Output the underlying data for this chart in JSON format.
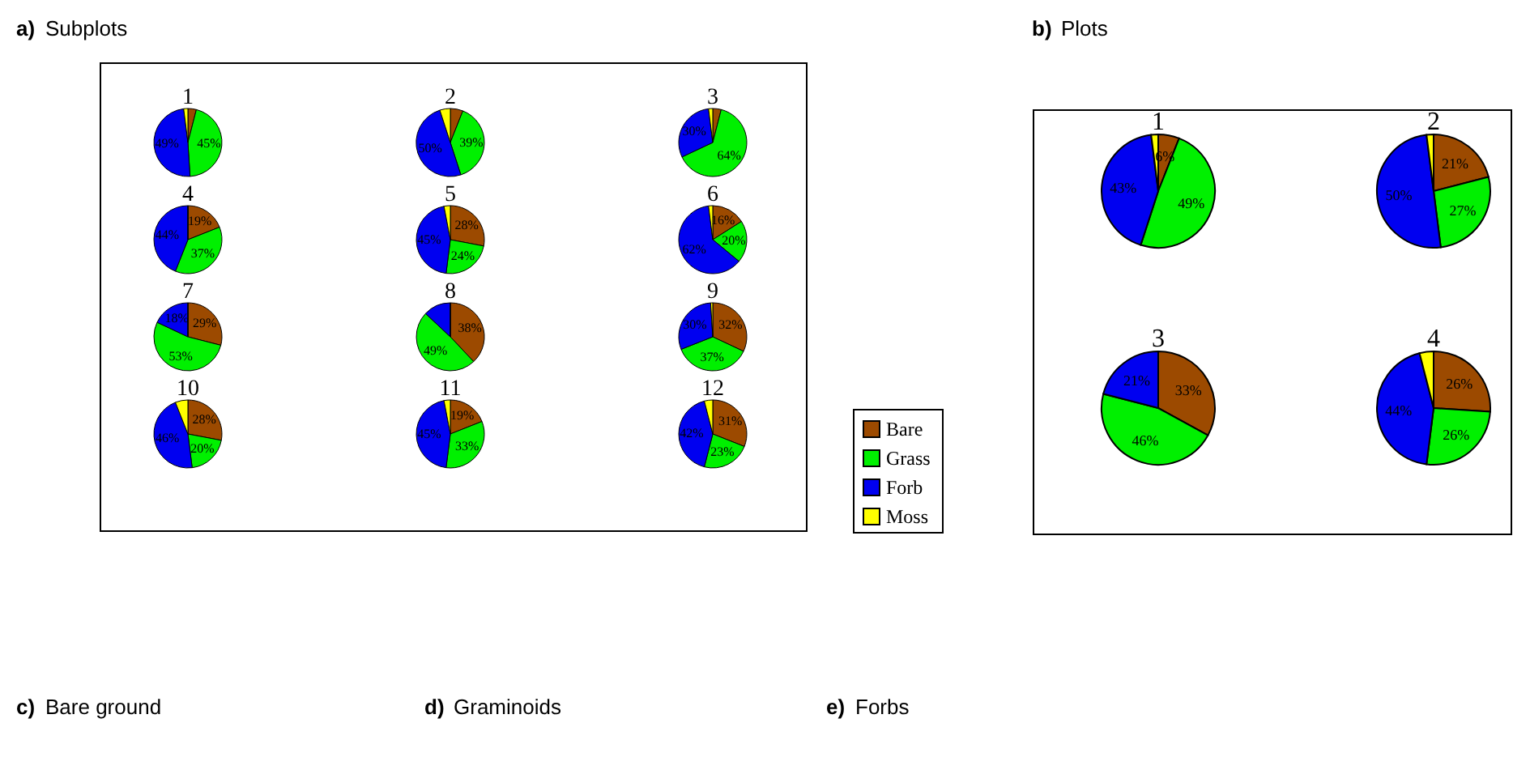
{
  "chart_data": [
    {
      "type": "pie",
      "title": "1",
      "categories": [
        "Bare",
        "Grass",
        "Forb",
        "Moss"
      ],
      "values": [
        4,
        45,
        49,
        2
      ],
      "colors": [
        "#9c4a00",
        "#00f000",
        "#0000f0",
        "#ffff00"
      ],
      "value_labels": [
        null,
        "45%",
        "49%",
        null
      ],
      "legend": "right",
      "annotations": [
        "a) Subplots"
      ]
    },
    {
      "type": "pie",
      "title": "2",
      "categories": [
        null,
        null,
        null,
        null
      ],
      "values": [
        6,
        39,
        50,
        5
      ],
      "colors": [
        "#9c4a00",
        "#00f000",
        "#0000f0",
        "#ffff00"
      ],
      "value_labels": [
        null,
        "39%",
        "50%",
        null
      ]
    },
    {
      "type": "pie",
      "title": "3",
      "categories": [
        null,
        null,
        null,
        null
      ],
      "values": [
        4,
        64,
        30,
        2
      ],
      "colors": [
        "#9c4a00",
        "#00f000",
        "#0000f0",
        "#ffff00"
      ],
      "value_labels": [
        null,
        "64%",
        "30%",
        null
      ]
    },
    {
      "type": "pie",
      "title": "4",
      "categories": [
        null,
        null,
        null,
        null
      ],
      "values": [
        19,
        37,
        44,
        0
      ],
      "colors": [
        "#9c4a00",
        "#00f000",
        "#0000f0",
        "#ffff00"
      ],
      "value_labels": [
        "19%",
        "37%",
        "44%",
        null
      ]
    },
    {
      "type": "pie",
      "title": "5",
      "categories": [
        null,
        null,
        null,
        null
      ],
      "values": [
        28,
        24,
        45,
        3
      ],
      "colors": [
        "#9c4a00",
        "#00f000",
        "#0000f0",
        "#ffff00"
      ],
      "value_labels": [
        "28%",
        "24%",
        "45%",
        null
      ]
    },
    {
      "type": "pie",
      "title": "6",
      "categories": [
        null,
        null,
        null,
        null
      ],
      "values": [
        16,
        20,
        62,
        2
      ],
      "colors": [
        "#9c4a00",
        "#00f000",
        "#0000f0",
        "#ffff00"
      ],
      "value_labels": [
        "16%",
        "20%",
        "62%",
        null
      ]
    },
    {
      "type": "pie",
      "title": "7",
      "categories": [
        null,
        null,
        null,
        null
      ],
      "values": [
        29,
        53,
        18,
        0
      ],
      "colors": [
        "#9c4a00",
        "#00f000",
        "#0000f0",
        "#ffff00"
      ],
      "value_labels": [
        "29%",
        "53%",
        "18%",
        null
      ]
    },
    {
      "type": "pie",
      "title": "8",
      "categories": [
        null,
        null,
        null,
        null
      ],
      "values": [
        38,
        49,
        13,
        0
      ],
      "colors": [
        "#9c4a00",
        "#00f000",
        "#0000f0",
        "#ffff00"
      ],
      "value_labels": [
        "38%",
        "49%",
        null,
        null
      ]
    },
    {
      "type": "pie",
      "title": "9",
      "categories": [
        null,
        null,
        null,
        null
      ],
      "values": [
        32,
        37,
        30,
        1
      ],
      "colors": [
        "#9c4a00",
        "#00f000",
        "#0000f0",
        "#ffff00"
      ],
      "value_labels": [
        "32%",
        "37%",
        "30%",
        null
      ]
    },
    {
      "type": "pie",
      "title": "10",
      "categories": [
        null,
        null,
        null,
        null
      ],
      "values": [
        28,
        20,
        46,
        6
      ],
      "colors": [
        "#9c4a00",
        "#00f000",
        "#0000f0",
        "#ffff00"
      ],
      "value_labels": [
        "28%",
        "20%",
        "46%",
        null
      ]
    },
    {
      "type": "pie",
      "title": "11",
      "categories": [
        null,
        null,
        null,
        null
      ],
      "values": [
        19,
        33,
        45,
        3
      ],
      "colors": [
        "#9c4a00",
        "#00f000",
        "#0000f0",
        "#ffff00"
      ],
      "value_labels": [
        "19%",
        "33%",
        "45%",
        null
      ]
    },
    {
      "type": "pie",
      "title": "12",
      "categories": [
        null,
        null,
        null,
        null
      ],
      "values": [
        31,
        23,
        42,
        4
      ],
      "colors": [
        "#9c4a00",
        "#00f000",
        "#0000f0",
        "#ffff00"
      ],
      "value_labels": [
        "31%",
        "23%",
        "42%",
        null
      ]
    },
    {
      "type": "pie",
      "title": "1",
      "categories": [
        null,
        null,
        null,
        null
      ],
      "values": [
        6,
        49,
        43,
        2
      ],
      "colors": [
        "#9c4a00",
        "#00f000",
        "#0000f0",
        "#ffff00"
      ],
      "value_labels": [
        "6%",
        "49%",
        "43%",
        null
      ],
      "annotations": [
        "b) Plots"
      ]
    },
    {
      "type": "pie",
      "title": "2",
      "categories": [
        null,
        null,
        null,
        null
      ],
      "values": [
        21,
        27,
        50,
        2
      ],
      "colors": [
        "#9c4a00",
        "#00f000",
        "#0000f0",
        "#ffff00"
      ],
      "value_labels": [
        "21%",
        "27%",
        "50%",
        null
      ]
    },
    {
      "type": "pie",
      "title": "3",
      "categories": [
        null,
        null,
        null,
        null
      ],
      "values": [
        33,
        46,
        21,
        0
      ],
      "colors": [
        "#9c4a00",
        "#00f000",
        "#0000f0",
        "#ffff00"
      ],
      "value_labels": [
        "33%",
        "46%",
        "21%",
        null
      ]
    },
    {
      "type": "pie",
      "title": "4",
      "categories": [
        null,
        null,
        null,
        null
      ],
      "values": [
        26,
        26,
        44,
        4
      ],
      "colors": [
        "#9c4a00",
        "#00f000",
        "#0000f0",
        "#ffff00"
      ],
      "value_labels": [
        "26%",
        "26%",
        "44%",
        null
      ],
      "annotations": [
        "c) Bare ground",
        "d) Graminoids",
        "e) Forbs"
      ]
    }
  ]
}
